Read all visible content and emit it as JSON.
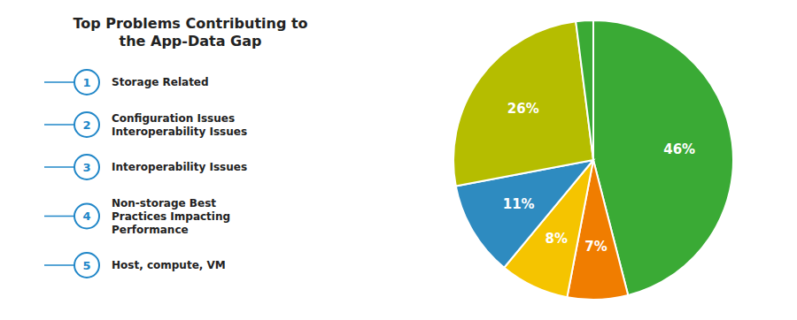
{
  "chart_data": {
    "type": "pie",
    "title": "Top Problems Contributing to\nthe App-Data Gap",
    "values": [
      46,
      7,
      8,
      11,
      26,
      2
    ],
    "value_labels": [
      "46%",
      "7%",
      "8%",
      "11%",
      "26%",
      null
    ],
    "colors": [
      "#3aaa35",
      "#f07d00",
      "#f5c400",
      "#2e8bc0",
      "#b5bd00",
      "#3aaa35"
    ],
    "data_labels": true,
    "annotations": [
      {
        "number": 1,
        "text": "Storage Related"
      },
      {
        "number": 2,
        "text": "Configuration Issues\nInteroperability Issues"
      },
      {
        "number": 3,
        "text": "Interoperability Issues"
      },
      {
        "number": 4,
        "text": "Non-storage Best\nPractices Impacting\nPerformance"
      },
      {
        "number": 5,
        "text": "Host, compute, VM"
      }
    ]
  }
}
